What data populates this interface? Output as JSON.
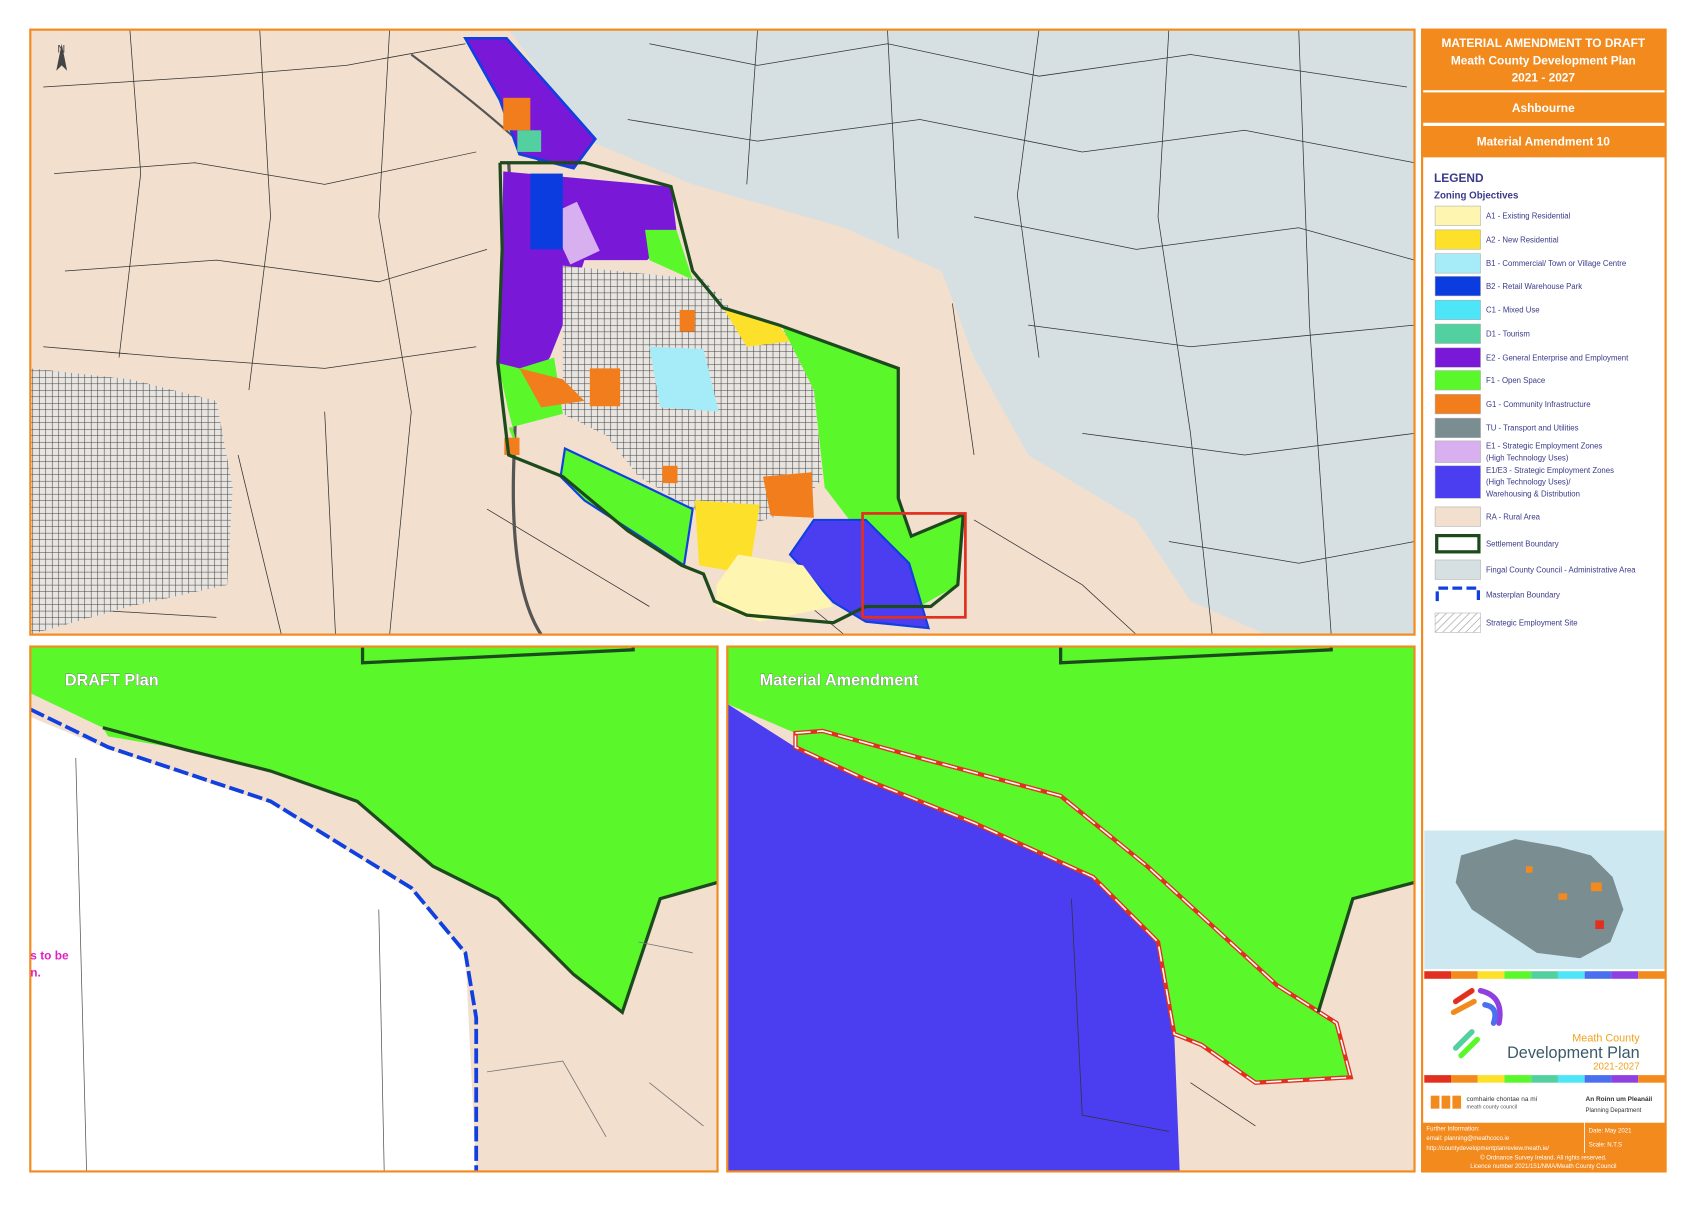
{
  "header": {
    "line1": "MATERIAL AMENDMENT TO DRAFT",
    "line2": "Meath County Development Plan",
    "line3": "2021 - 2027"
  },
  "town": "Ashbourne",
  "amendment": "Material Amendment 10",
  "north": "N",
  "legend": {
    "heading": "LEGEND",
    "subheading": "Zoning Objectives",
    "items": [
      {
        "label": [
          "A1 - Existing Residential"
        ],
        "color": "#fdf5b0",
        "style": "fill"
      },
      {
        "label": [
          "A2 - New Residential"
        ],
        "color": "#fde02a",
        "style": "fill"
      },
      {
        "label": [
          "B1 - Commercial/ Town or Village Centre"
        ],
        "color": "#a6ecf8",
        "style": "fill"
      },
      {
        "label": [
          "B2 - Retail Warehouse Park"
        ],
        "color": "#0a3ce0",
        "style": "fill"
      },
      {
        "label": [
          "C1 - Mixed Use"
        ],
        "color": "#4ce6f8",
        "style": "fill"
      },
      {
        "label": [
          "D1 - Tourism"
        ],
        "color": "#52d0a0",
        "style": "fill"
      },
      {
        "label": [
          "E2 - General Enterprise and Employment"
        ],
        "color": "#7a18d8",
        "style": "fill"
      },
      {
        "label": [
          "F1 - Open Space"
        ],
        "color": "#5af82a",
        "style": "fill"
      },
      {
        "label": [
          "G1 - Community Infrastructure"
        ],
        "color": "#f27d1c",
        "style": "fill"
      },
      {
        "label": [
          "TU - Transport and Utilities"
        ],
        "color": "#7a8e92",
        "style": "fill"
      },
      {
        "label": [
          "E1 - Strategic Employment Zones",
          "(High Technology Uses)"
        ],
        "color": "#d8b0f0",
        "style": "fill"
      },
      {
        "label": [
          "E1/E3 - Strategic Employment Zones",
          "(High Technology Uses)/",
          "Warehousing & Distribution"
        ],
        "color": "#4a3ef0",
        "style": "fill"
      },
      {
        "label": [
          "RA - Rural Area"
        ],
        "color": "#f3dfcd",
        "style": "fill"
      },
      {
        "label": [
          "Settlement Boundary"
        ],
        "color": "#1d4a1d",
        "style": "outline"
      },
      {
        "label": [
          "Fingal County Council - Administrative Area"
        ],
        "color": "#d6e0e2",
        "style": "fill"
      },
      {
        "label": [
          "Masterplan Boundary"
        ],
        "color": "#1040e0",
        "style": "dashed"
      },
      {
        "label": [
          "Strategic Employment Site"
        ],
        "color": "#b0b0b0",
        "style": "hatch"
      }
    ]
  },
  "panels": {
    "draft": "DRAFT Plan",
    "amendment": "Material Amendment"
  },
  "draft_note": [
    "s to be",
    "n."
  ],
  "logo": {
    "line1": "Meath County",
    "line2": "Development Plan",
    "line3": "2021-2027"
  },
  "council": {
    "irish": "comhairle chontae na mí",
    "english": "meath county council",
    "dept_irish": "An Roinn um Pleanáil",
    "dept_english": "Planning Department"
  },
  "footer": {
    "further": "Further Information:",
    "email": "email: planning@meathcoco.ie",
    "url": "http://countydevelopmentplanreview.meath.ie/",
    "date": "Date: May 2021",
    "scale": "Scale: N.T.S",
    "copyright": "© Ordnance Survey Ireland. All rights reserved.",
    "licence": "Licence number 2021/151/NMA/Meath County Council"
  }
}
